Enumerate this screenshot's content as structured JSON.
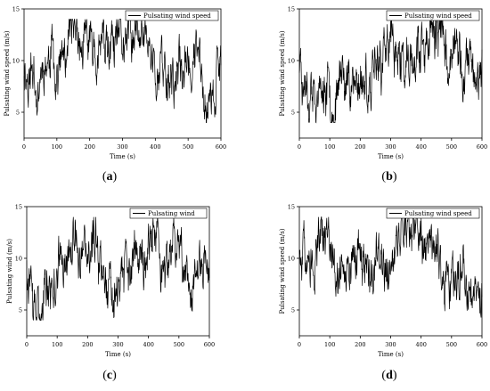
{
  "chart_data": [
    {
      "type": "line",
      "panel": "a",
      "xlabel": "Time (s)",
      "ylabel": "Pulsating wind speed (m/s)",
      "legend": "Pulsating wind speed",
      "xlim": [
        0,
        600
      ],
      "ylim": [
        2.5,
        15
      ],
      "xticks": [
        "0",
        "100",
        "200",
        "300",
        "400",
        "500",
        "600"
      ],
      "yticks": [
        "5",
        "10",
        "15"
      ],
      "series": [
        {
          "name": "Pulsating wind speed",
          "mean": 9.5,
          "min": 4.0,
          "max": 14.0,
          "seed": 11
        }
      ]
    },
    {
      "type": "line",
      "panel": "b",
      "xlabel": "Time (s)",
      "ylabel": "Pulsating wind speed (m/s)",
      "legend": "Pulsating wind speed",
      "xlim": [
        0,
        600
      ],
      "ylim": [
        2.5,
        15
      ],
      "xticks": [
        "0",
        "100",
        "200",
        "300",
        "400",
        "500",
        "600"
      ],
      "yticks": [
        "5",
        "10",
        "15"
      ],
      "series": [
        {
          "name": "Pulsating wind speed",
          "mean": 9.5,
          "min": 4.0,
          "max": 14.0,
          "seed": 23
        }
      ]
    },
    {
      "type": "line",
      "panel": "c",
      "xlabel": "Time (s)",
      "ylabel": "Pulsating wind (m/s)",
      "legend": "Pulsating wind",
      "xlim": [
        0,
        600
      ],
      "ylim": [
        2.5,
        15
      ],
      "xticks": [
        "0",
        "100",
        "200",
        "300",
        "400",
        "500",
        "600"
      ],
      "yticks": [
        "5",
        "10",
        "15"
      ],
      "series": [
        {
          "name": "Pulsating wind",
          "mean": 9.5,
          "min": 4.0,
          "max": 14.0,
          "seed": 37
        }
      ]
    },
    {
      "type": "line",
      "panel": "d",
      "xlabel": "Time (s)",
      "ylabel": "Pulsating wind speed (m/s)",
      "legend": "Pulsating wind speed",
      "xlim": [
        0,
        600
      ],
      "ylim": [
        2.5,
        15
      ],
      "xticks": [
        "0",
        "100",
        "200",
        "300",
        "400",
        "500",
        "600"
      ],
      "yticks": [
        "5",
        "10",
        "15"
      ],
      "series": [
        {
          "name": "Pulsating wind speed",
          "mean": 9.5,
          "min": 4.0,
          "max": 14.0,
          "seed": 51
        }
      ]
    }
  ],
  "captions": {
    "a": {
      "open": "(",
      "letter": "a",
      "close": ")"
    },
    "b": {
      "open": "(",
      "letter": "b",
      "close": ")"
    },
    "c": {
      "open": "(",
      "letter": "c",
      "close": ")"
    },
    "d": {
      "open": "(",
      "letter": "d",
      "close": ")"
    }
  },
  "colors": {
    "line": "#000000",
    "axis": "#000000",
    "background": "#ffffff"
  }
}
